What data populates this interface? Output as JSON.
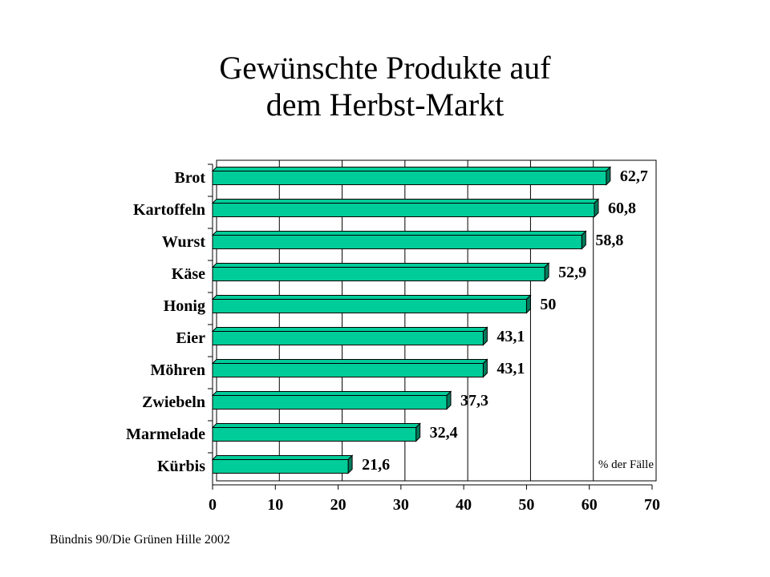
{
  "title_line1": "Gewünschte Produkte auf",
  "title_line2": "dem Herbst-Markt",
  "footer": "Bündnis 90/Die Grünen Hille 2002",
  "chart_data": {
    "type": "bar",
    "orientation": "horizontal",
    "categories": [
      "Brot",
      "Kartoffeln",
      "Wurst",
      "Käse",
      "Honig",
      "Eier",
      "Möhren",
      "Zwiebeln",
      "Marmelade",
      "Kürbis"
    ],
    "values": [
      62.7,
      60.8,
      58.8,
      52.9,
      50,
      43.1,
      43.1,
      37.3,
      32.4,
      21.6
    ],
    "value_labels": [
      "62,7",
      "60,8",
      "58,8",
      "52,9",
      "50",
      "43,1",
      "43,1",
      "37,3",
      "32,4",
      "21,6"
    ],
    "xlim": [
      0,
      70
    ],
    "xticks": [
      0,
      10,
      20,
      30,
      40,
      50,
      60,
      70
    ],
    "unit_label": "% der Fälle",
    "grid": true,
    "bar_color": "#00cc99",
    "bar_shade_color": "#007a5c"
  }
}
